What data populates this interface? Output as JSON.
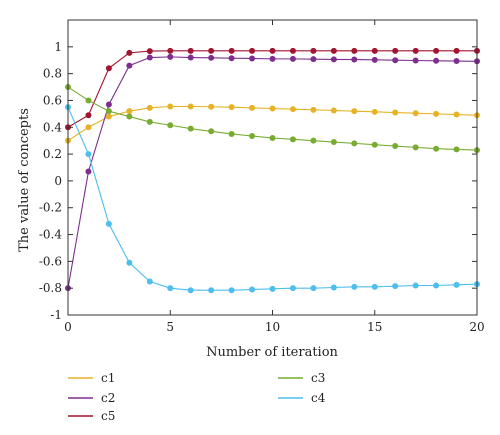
{
  "chart_data": {
    "type": "line",
    "xlabel": "Number of iteration",
    "ylabel": "The value of concepts",
    "xlim": [
      0,
      20
    ],
    "ylim": [
      -1,
      1.2
    ],
    "x_ticks": [
      0,
      5,
      10,
      15,
      20
    ],
    "y_ticks": [
      -1,
      -0.8,
      -0.6,
      -0.4,
      -0.2,
      0,
      0.2,
      0.4,
      0.6,
      0.8,
      1
    ],
    "x_tick_labels": [
      "0",
      "5",
      "10",
      "15",
      "20"
    ],
    "y_tick_labels": [
      "-1",
      "-0.8",
      "-0.6",
      "-0.4",
      "-0.2",
      "0",
      "0.2",
      "0.4",
      "0.6",
      "0.8",
      "1"
    ],
    "x": [
      0,
      1,
      2,
      3,
      4,
      5,
      6,
      7,
      8,
      9,
      10,
      11,
      12,
      13,
      14,
      15,
      16,
      17,
      18,
      19,
      20
    ],
    "legend_position": "bottom",
    "series": [
      {
        "name": "c1",
        "color": "#E8B226",
        "values": [
          0.3,
          0.4,
          0.48,
          0.52,
          0.545,
          0.555,
          0.555,
          0.553,
          0.55,
          0.545,
          0.54,
          0.535,
          0.53,
          0.525,
          0.52,
          0.515,
          0.51,
          0.505,
          0.5,
          0.495,
          0.49
        ]
      },
      {
        "name": "c2",
        "color": "#7E2F8E",
        "values": [
          -0.8,
          0.07,
          0.57,
          0.86,
          0.92,
          0.925,
          0.92,
          0.918,
          0.915,
          0.913,
          0.91,
          0.91,
          0.908,
          0.906,
          0.905,
          0.903,
          0.9,
          0.898,
          0.896,
          0.894,
          0.892
        ]
      },
      {
        "name": "c5",
        "color": "#A2142F",
        "values": [
          0.4,
          0.49,
          0.84,
          0.955,
          0.968,
          0.97,
          0.97,
          0.97,
          0.97,
          0.97,
          0.97,
          0.97,
          0.97,
          0.97,
          0.97,
          0.97,
          0.97,
          0.97,
          0.97,
          0.97,
          0.97
        ]
      },
      {
        "name": "c3",
        "color": "#77AC30",
        "values": [
          0.7,
          0.6,
          0.52,
          0.48,
          0.44,
          0.415,
          0.39,
          0.37,
          0.35,
          0.335,
          0.32,
          0.31,
          0.3,
          0.29,
          0.28,
          0.27,
          0.26,
          0.25,
          0.24,
          0.235,
          0.23
        ]
      },
      {
        "name": "c4",
        "color": "#4DBEEE",
        "values": [
          0.55,
          0.2,
          -0.32,
          -0.61,
          -0.75,
          -0.8,
          -0.815,
          -0.815,
          -0.815,
          -0.81,
          -0.805,
          -0.8,
          -0.8,
          -0.795,
          -0.79,
          -0.79,
          -0.785,
          -0.78,
          -0.78,
          -0.775,
          -0.77
        ]
      }
    ]
  }
}
